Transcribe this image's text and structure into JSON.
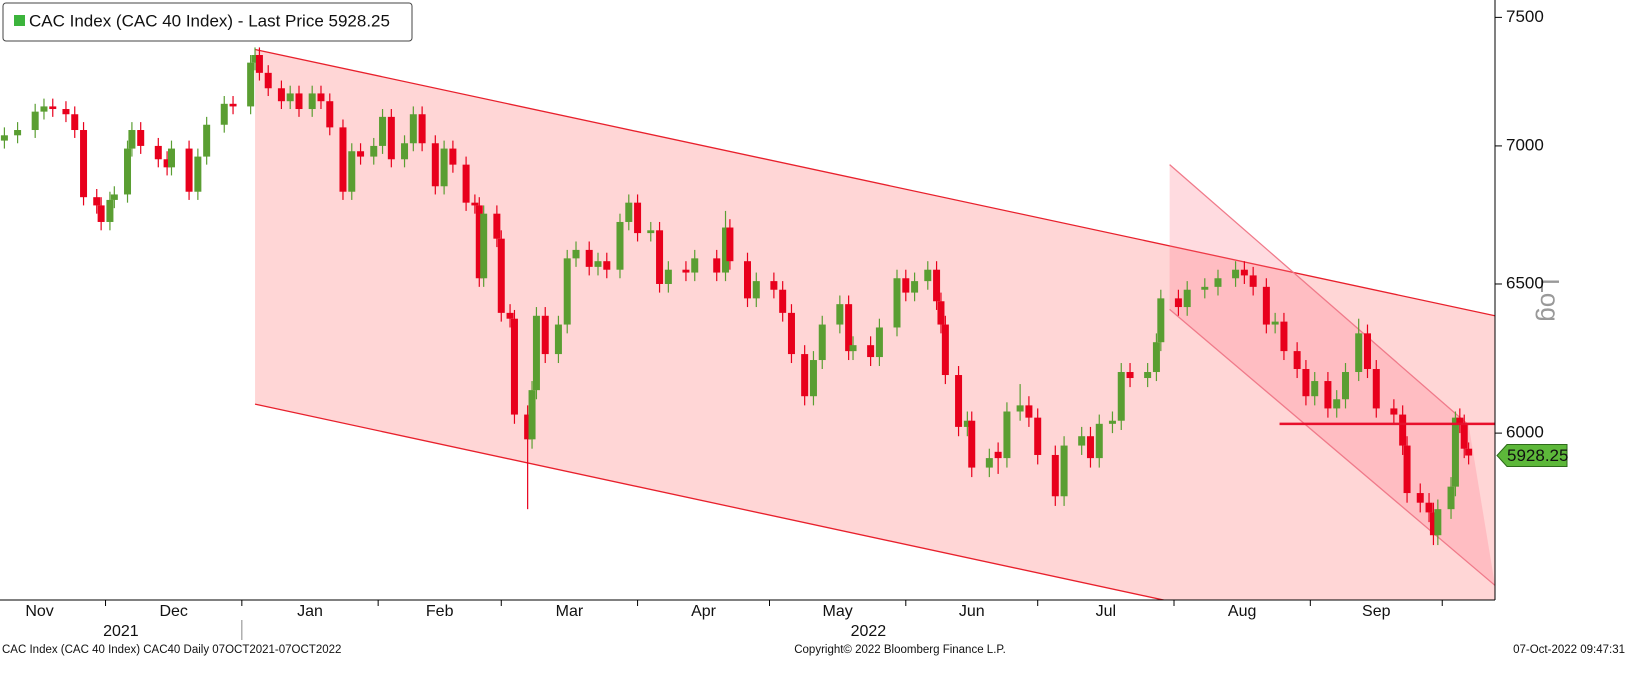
{
  "chart_data": {
    "type": "candlestick",
    "title": "CAC Index (CAC 40 Index) - Last Price 5928.25",
    "footer_left": "CAC Index (CAC 40 Index) CAC40  Daily 07OCT2021-07OCT2022",
    "footer_center": "Copyright© 2022 Bloomberg Finance L.P.",
    "footer_right": "07-Oct-2022 09:47:31",
    "y_axis_label": "Log",
    "log_scale": true,
    "last_price": 5928.25,
    "up_color": "#5a9e32",
    "down_color": "#e8001c",
    "last_price_color": "#5db83a",
    "xlim": [
      "2021-11-07",
      "2022-10-13"
    ],
    "ylim": [
      5480,
      7550
    ],
    "yticks": [
      6000,
      6500,
      7000,
      7500
    ],
    "xticks": [
      {
        "value": "2021-11-01",
        "label": "Nov"
      },
      {
        "value": "2021-12-01",
        "label": "Dec"
      },
      {
        "value": "2022-01-01",
        "label": "Jan"
      },
      {
        "value": "2022-02-01",
        "label": "Feb"
      },
      {
        "value": "2022-03-01",
        "label": "Mar"
      },
      {
        "value": "2022-04-01",
        "label": "Apr"
      },
      {
        "value": "2022-05-01",
        "label": "May"
      },
      {
        "value": "2022-06-01",
        "label": "Jun"
      },
      {
        "value": "2022-07-01",
        "label": "Jul"
      },
      {
        "value": "2022-08-01",
        "label": "Aug"
      },
      {
        "value": "2022-09-01",
        "label": "Sep"
      },
      {
        "value": "2022-10-01",
        "label": null
      }
    ],
    "x_group_labels": [
      {
        "value": "2021-11-01",
        "label": "2021"
      },
      {
        "value": "2022-01-01",
        "label": "2022"
      }
    ],
    "channels": [
      {
        "color": "#ff8a8a",
        "opacity": 0.35,
        "upper": {
          "x": [
            "2022-01-04",
            "2022-10-13"
          ],
          "y": [
            7372,
            6390
          ]
        },
        "lower": {
          "x": [
            "2022-01-04",
            "2022-07-31"
          ],
          "y": [
            6094,
            5482
          ]
        }
      },
      {
        "color": "#ff7f8f",
        "opacity": 0.28,
        "upper": {
          "x": [
            "2022-07-31",
            "2022-10-07"
          ],
          "y": [
            6930,
            6026
          ]
        },
        "lower": {
          "x": [
            "2022-07-31",
            "2022-10-13"
          ],
          "y": [
            6412,
            5529
          ]
        }
      }
    ],
    "level_line": {
      "x": [
        "2022-08-25",
        "2022-10-13"
      ],
      "y": [
        6030,
        6030
      ],
      "color": "#e8102c"
    },
    "x": [
      "2021-11-08",
      "2021-11-11",
      "2021-11-15",
      "2021-11-17",
      "2021-11-19",
      "2021-11-22",
      "2021-11-24",
      "2021-11-26",
      "2021-11-29",
      "2021-11-30",
      "2021-12-02",
      "2021-12-03",
      "2021-12-06",
      "2021-12-07",
      "2021-12-09",
      "2021-12-13",
      "2021-12-15",
      "2021-12-16",
      "2021-12-20",
      "2021-12-22",
      "2021-12-24",
      "2021-12-28",
      "2021-12-30",
      "2022-01-03",
      "2022-01-04",
      "2022-01-05",
      "2022-01-07",
      "2022-01-10",
      "2022-01-12",
      "2022-01-14",
      "2022-01-17",
      "2022-01-19",
      "2022-01-21",
      "2022-01-24",
      "2022-01-26",
      "2022-01-28",
      "2022-01-31",
      "2022-02-02",
      "2022-02-04",
      "2022-02-07",
      "2022-02-09",
      "2022-02-11",
      "2022-02-14",
      "2022-02-16",
      "2022-02-18",
      "2022-02-21",
      "2022-02-23",
      "2022-02-24",
      "2022-02-25",
      "2022-02-28",
      "2022-03-01",
      "2022-03-03",
      "2022-03-04",
      "2022-03-07",
      "2022-03-08",
      "2022-03-09",
      "2022-03-11",
      "2022-03-14",
      "2022-03-16",
      "2022-03-18",
      "2022-03-21",
      "2022-03-23",
      "2022-03-25",
      "2022-03-28",
      "2022-03-30",
      "2022-04-01",
      "2022-04-04",
      "2022-04-06",
      "2022-04-08",
      "2022-04-12",
      "2022-04-14",
      "2022-04-19",
      "2022-04-21",
      "2022-04-22",
      "2022-04-26",
      "2022-04-28",
      "2022-05-02",
      "2022-05-04",
      "2022-05-06",
      "2022-05-09",
      "2022-05-11",
      "2022-05-13",
      "2022-05-17",
      "2022-05-19",
      "2022-05-20",
      "2022-05-24",
      "2022-05-26",
      "2022-05-30",
      "2022-06-01",
      "2022-06-03",
      "2022-06-06",
      "2022-06-08",
      "2022-06-09",
      "2022-06-10",
      "2022-06-13",
      "2022-06-15",
      "2022-06-16",
      "2022-06-20",
      "2022-06-22",
      "2022-06-24",
      "2022-06-27",
      "2022-06-29",
      "2022-07-01",
      "2022-07-05",
      "2022-07-07",
      "2022-07-11",
      "2022-07-13",
      "2022-07-15",
      "2022-07-18",
      "2022-07-20",
      "2022-07-22",
      "2022-07-26",
      "2022-07-28",
      "2022-07-29",
      "2022-08-02",
      "2022-08-04",
      "2022-08-08",
      "2022-08-11",
      "2022-08-15",
      "2022-08-17",
      "2022-08-19",
      "2022-08-22",
      "2022-08-24",
      "2022-08-26",
      "2022-08-29",
      "2022-08-31",
      "2022-09-02",
      "2022-09-05",
      "2022-09-07",
      "2022-09-09",
      "2022-09-12",
      "2022-09-14",
      "2022-09-16",
      "2022-09-20",
      "2022-09-22",
      "2022-09-23",
      "2022-09-26",
      "2022-09-28",
      "2022-09-29",
      "2022-09-30",
      "2022-10-03",
      "2022-10-04",
      "2022-10-05",
      "2022-10-06",
      "2022-10-07"
    ],
    "open": [
      7020,
      7040,
      7060,
      7130,
      7150,
      7140,
      7120,
      7060,
      6810,
      6780,
      6720,
      6800,
      6820,
      6990,
      7060,
      7000,
      6950,
      6920,
      6990,
      6830,
      6960,
      7080,
      7160,
      7150,
      7320,
      7350,
      7280,
      7220,
      7170,
      7200,
      7140,
      7200,
      7170,
      7070,
      6830,
      6980,
      6960,
      7000,
      7110,
      6950,
      7010,
      7120,
      7010,
      6850,
      6990,
      6930,
      6790,
      6780,
      6520,
      6750,
      6660,
      6400,
      6380,
      6060,
      5980,
      6140,
      6390,
      6260,
      6360,
      6590,
      6620,
      6560,
      6580,
      6550,
      6720,
      6790,
      6680,
      6690,
      6500,
      6550,
      6540,
      6590,
      6540,
      6700,
      6580,
      6450,
      6510,
      6480,
      6400,
      6260,
      6120,
      6240,
      6360,
      6430,
      6270,
      6290,
      6250,
      6350,
      6520,
      6470,
      6510,
      6550,
      6440,
      6360,
      6190,
      6020,
      6040,
      5890,
      5940,
      5920,
      6070,
      6090,
      6050,
      5930,
      5800,
      5960,
      5990,
      5920,
      6030,
      6040,
      6200,
      6180,
      6200,
      6300,
      6450,
      6420,
      6480,
      6490,
      6520,
      6550,
      6530,
      6490,
      6360,
      6370,
      6270,
      6210,
      6120,
      6170,
      6080,
      6110,
      6200,
      6330,
      6210,
      6080,
      6060,
      5960,
      5810,
      5780,
      5750,
      5680,
      5760,
      5830,
      6050,
      6030,
      5950
    ],
    "high": [
      7070,
      7090,
      7160,
      7180,
      7180,
      7170,
      7150,
      7090,
      6840,
      6810,
      6830,
      6850,
      7020,
      7090,
      7090,
      7030,
      6980,
      7020,
      7020,
      6990,
      7110,
      7190,
      7190,
      7350,
      7380,
      7380,
      7310,
      7250,
      7230,
      7230,
      7230,
      7230,
      7200,
      7100,
      7010,
      7010,
      7030,
      7140,
      7140,
      7040,
      7150,
      7150,
      7040,
      7020,
      7020,
      6960,
      6820,
      6810,
      6780,
      6780,
      6690,
      6430,
      6410,
      6090,
      6170,
      6420,
      6420,
      6390,
      6620,
      6650,
      6650,
      6610,
      6610,
      6750,
      6820,
      6820,
      6720,
      6720,
      6580,
      6580,
      6620,
      6620,
      6760,
      6730,
      6610,
      6540,
      6540,
      6510,
      6430,
      6290,
      6270,
      6390,
      6460,
      6460,
      6320,
      6320,
      6380,
      6550,
      6550,
      6540,
      6580,
      6580,
      6470,
      6390,
      6220,
      6070,
      6070,
      5950,
      5970,
      6100,
      6160,
      6120,
      6080,
      5960,
      5990,
      6020,
      6020,
      6060,
      6070,
      6230,
      6230,
      6230,
      6330,
      6480,
      6480,
      6510,
      6520,
      6550,
      6580,
      6580,
      6560,
      6520,
      6400,
      6400,
      6300,
      6240,
      6200,
      6200,
      6140,
      6230,
      6380,
      6360,
      6240,
      6110,
      6090,
      5990,
      5840,
      5810,
      5780,
      5790,
      5860,
      6070,
      6080,
      6060,
      5970
    ],
    "low": [
      6990,
      7010,
      7030,
      7100,
      7110,
      7090,
      7030,
      6780,
      6750,
      6690,
      6690,
      6770,
      6790,
      6960,
      6970,
      6920,
      6890,
      6890,
      6800,
      6800,
      6930,
      7050,
      7120,
      7120,
      7290,
      7250,
      7190,
      7140,
      7140,
      7110,
      7110,
      7140,
      7040,
      6800,
      6800,
      6930,
      6930,
      6970,
      6920,
      6920,
      6980,
      6980,
      6820,
      6820,
      6900,
      6760,
      6750,
      6490,
      6490,
      6630,
      6370,
      6350,
      6030,
      5760,
      5950,
      6110,
      6230,
      6230,
      6330,
      6560,
      6530,
      6530,
      6520,
      6520,
      6690,
      6650,
      6650,
      6470,
      6470,
      6510,
      6510,
      6510,
      6510,
      6550,
      6420,
      6420,
      6450,
      6370,
      6230,
      6090,
      6090,
      6210,
      6330,
      6240,
      6240,
      6220,
      6220,
      6320,
      6440,
      6440,
      6480,
      6410,
      6330,
      6160,
      5990,
      5990,
      5860,
      5860,
      5870,
      5890,
      6040,
      6020,
      5900,
      5770,
      5770,
      5930,
      5890,
      5890,
      6000,
      6010,
      6150,
      6150,
      6170,
      6270,
      6390,
      6390,
      6450,
      6460,
      6490,
      6500,
      6460,
      6330,
      6330,
      6240,
      6180,
      6090,
      6090,
      6050,
      6050,
      6080,
      6170,
      6180,
      6050,
      6030,
      5930,
      5780,
      5750,
      5720,
      5650,
      5650,
      5730,
      5800,
      6000,
      5920,
      5900
    ],
    "close": [
      7040,
      7060,
      7130,
      7150,
      7140,
      7120,
      7060,
      6810,
      6780,
      6720,
      6800,
      6820,
      6990,
      7060,
      7000,
      6950,
      6920,
      6990,
      6830,
      6960,
      7080,
      7160,
      7150,
      7320,
      7350,
      7280,
      7220,
      7170,
      7200,
      7140,
      7200,
      7170,
      7070,
      6830,
      6980,
      6960,
      7000,
      7110,
      6950,
      7010,
      7120,
      7010,
      6850,
      6990,
      6930,
      6790,
      6780,
      6520,
      6750,
      6660,
      6400,
      6380,
      6060,
      5980,
      6140,
      6390,
      6260,
      6360,
      6590,
      6620,
      6560,
      6580,
      6550,
      6720,
      6790,
      6680,
      6690,
      6500,
      6550,
      6540,
      6590,
      6540,
      6700,
      6580,
      6450,
      6510,
      6480,
      6400,
      6260,
      6120,
      6240,
      6360,
      6430,
      6270,
      6290,
      6250,
      6350,
      6520,
      6470,
      6510,
      6550,
      6440,
      6360,
      6190,
      6020,
      6040,
      5890,
      5920,
      5920,
      6070,
      6090,
      6050,
      5930,
      5800,
      5960,
      5990,
      5920,
      6030,
      6040,
      6200,
      6180,
      6200,
      6300,
      6450,
      6420,
      6480,
      6490,
      6520,
      6550,
      6530,
      6490,
      6360,
      6370,
      6270,
      6210,
      6120,
      6170,
      6080,
      6110,
      6200,
      6330,
      6210,
      6080,
      6060,
      5960,
      5810,
      5780,
      5750,
      5680,
      5760,
      5830,
      6050,
      6030,
      5950,
      5928.25
    ]
  }
}
